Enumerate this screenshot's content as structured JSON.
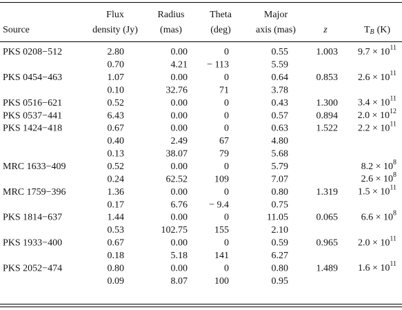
{
  "table": {
    "header": {
      "source": "Source",
      "flux": [
        "Flux",
        "density (Jy)"
      ],
      "radius": [
        "Radius",
        "(mas)"
      ],
      "theta": [
        "Theta",
        "(deg)"
      ],
      "major": [
        "Major",
        "axis (mas)"
      ],
      "z": "z",
      "tb": {
        "t": "T",
        "sub": "B",
        "unit": "(K)"
      }
    },
    "rows": [
      [
        "PKS 0208−512",
        "2.80",
        "0.00",
        "0",
        "0.55",
        "1.003",
        {
          "base": "9.7 × 10",
          "exp": "11"
        }
      ],
      [
        null,
        "0.70",
        "4.21",
        "− 113",
        "5.59",
        null,
        null
      ],
      [
        "PKS 0454−463",
        "1.07",
        "0.00",
        "0",
        "0.64",
        "0.853",
        {
          "base": "2.6 × 10",
          "exp": "11"
        }
      ],
      [
        null,
        "0.10",
        "32.76",
        "71",
        "3.78",
        null,
        null
      ],
      [
        "PKS 0516−621",
        "0.52",
        "0.00",
        "0",
        "0.43",
        "1.300",
        {
          "base": "3.4 × 10",
          "exp": "11"
        }
      ],
      [
        "PKS 0537−441",
        "6.43",
        "0.00",
        "0",
        "0.57",
        "0.894",
        {
          "base": "2.0 × 10",
          "exp": "12"
        }
      ],
      [
        "PKS 1424−418",
        "0.67",
        "0.00",
        "0",
        "0.63",
        "1.522",
        {
          "base": "2.2 × 10",
          "exp": "11"
        }
      ],
      [
        null,
        "0.40",
        "2.49",
        "67",
        "4.80",
        null,
        null
      ],
      [
        null,
        "0.13",
        "38.07",
        "79",
        "5.68",
        null,
        null
      ],
      [
        "MRC 1633−409",
        "0.52",
        "0.00",
        "0",
        "5.79",
        null,
        {
          "base": "8.2 × 10",
          "exp": "8"
        }
      ],
      [
        null,
        "0.24",
        "62.52",
        "109",
        "7.07",
        null,
        {
          "base": "2.6 × 10",
          "exp": "8"
        }
      ],
      [
        "MRC 1759−396",
        "1.36",
        "0.00",
        "0",
        "0.80",
        "1.319",
        {
          "base": "1.5 × 10",
          "exp": "11"
        }
      ],
      [
        null,
        "0.17",
        "6.76",
        "− 9.4",
        "0.75",
        null,
        null
      ],
      [
        "PKS 1814−637",
        "1.44",
        "0.00",
        "0",
        "11.05",
        "0.065",
        {
          "base": "6.6 × 10",
          "exp": "8"
        }
      ],
      [
        null,
        "0.53",
        "102.75",
        "155",
        "2.10",
        null,
        null
      ],
      [
        "PKS 1933−400",
        "0.67",
        "0.00",
        "0",
        "0.59",
        "0.965",
        {
          "base": "2.0 × 10",
          "exp": "11"
        }
      ],
      [
        null,
        "0.18",
        "5.18",
        "141",
        "6.27",
        null,
        null
      ],
      [
        "PKS 2052−474",
        "0.80",
        "0.00",
        "0",
        "0.80",
        "1.489",
        {
          "base": "1.6 × 10",
          "exp": "11"
        }
      ],
      [
        null,
        "0.09",
        "8.07",
        "100",
        "0.95",
        null,
        null
      ]
    ]
  }
}
